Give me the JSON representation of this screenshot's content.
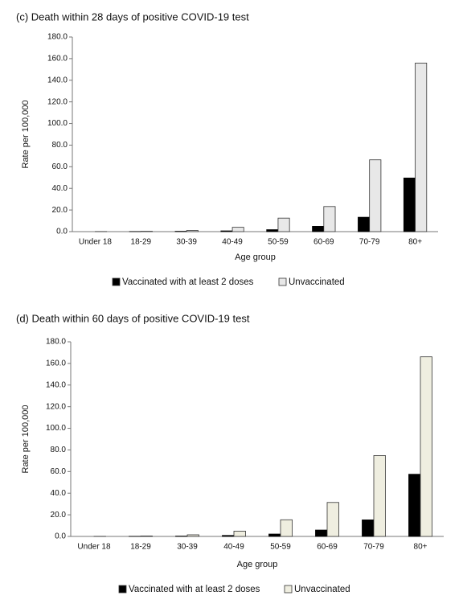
{
  "chart_data": [
    {
      "type": "bar",
      "title": "(c) Death within 28 days of positive COVID-19 test",
      "x_label": "Age group",
      "y_label": "Rate per 100,000",
      "categories": [
        "Under 18",
        "18-29",
        "30-39",
        "40-49",
        "50-59",
        "60-69",
        "70-79",
        "80+"
      ],
      "series": [
        {
          "name": "Vaccinated with at least 2 doses",
          "color": "#000000",
          "values": [
            0.0,
            0.1,
            0.3,
            0.7,
            1.8,
            4.9,
            13.3,
            49.6
          ]
        },
        {
          "name": "Unvaccinated",
          "color": "#e8e8e8",
          "values": [
            0.1,
            0.3,
            1.1,
            4.0,
            12.5,
            23.2,
            66.4,
            155.9
          ]
        }
      ],
      "ylim": [
        0,
        180
      ],
      "yticks": [
        {
          "value": 0,
          "label": "0.0"
        },
        {
          "value": 20,
          "label": "20.0"
        },
        {
          "value": 40,
          "label": "40.0"
        },
        {
          "value": 60,
          "label": "60.0"
        },
        {
          "value": 80,
          "label": "80.0"
        },
        {
          "value": 100,
          "label": "100.0"
        },
        {
          "value": 120,
          "label": "120.0"
        },
        {
          "value": 140,
          "label": "140.0"
        },
        {
          "value": 160,
          "label": "160.0"
        },
        {
          "value": 180,
          "label": "180.0"
        }
      ],
      "legend": "bottom"
    },
    {
      "type": "bar",
      "title": "(d) Death within 60 days of positive COVID-19 test",
      "x_label": "Age group",
      "y_label": "Rate per 100,000",
      "categories": [
        "Under 18",
        "18-29",
        "30-39",
        "40-49",
        "50-59",
        "60-69",
        "70-79",
        "80+"
      ],
      "series": [
        {
          "name": "Vaccinated with at least 2 doses",
          "color": "#000000",
          "values": [
            0.0,
            0.1,
            0.3,
            0.9,
            2.2,
            5.9,
            15.3,
            57.5
          ]
        },
        {
          "name": "Unvaccinated",
          "color": "#efeee0",
          "values": [
            0.1,
            0.4,
            1.5,
            4.9,
            15.4,
            31.4,
            74.8,
            166.1
          ]
        }
      ],
      "ylim": [
        0,
        180
      ],
      "yticks": [
        {
          "value": 0,
          "label": "0.0"
        },
        {
          "value": 20,
          "label": "20.0"
        },
        {
          "value": 40,
          "label": "40.0"
        },
        {
          "value": 60,
          "label": "60.0"
        },
        {
          "value": 80,
          "label": "80.0"
        },
        {
          "value": 100,
          "label": "100.0"
        },
        {
          "value": 120,
          "label": "120.0"
        },
        {
          "value": 140,
          "label": "140.0"
        },
        {
          "value": 160,
          "label": "160.0"
        },
        {
          "value": 180,
          "label": "180.0"
        }
      ],
      "legend": "bottom"
    }
  ]
}
